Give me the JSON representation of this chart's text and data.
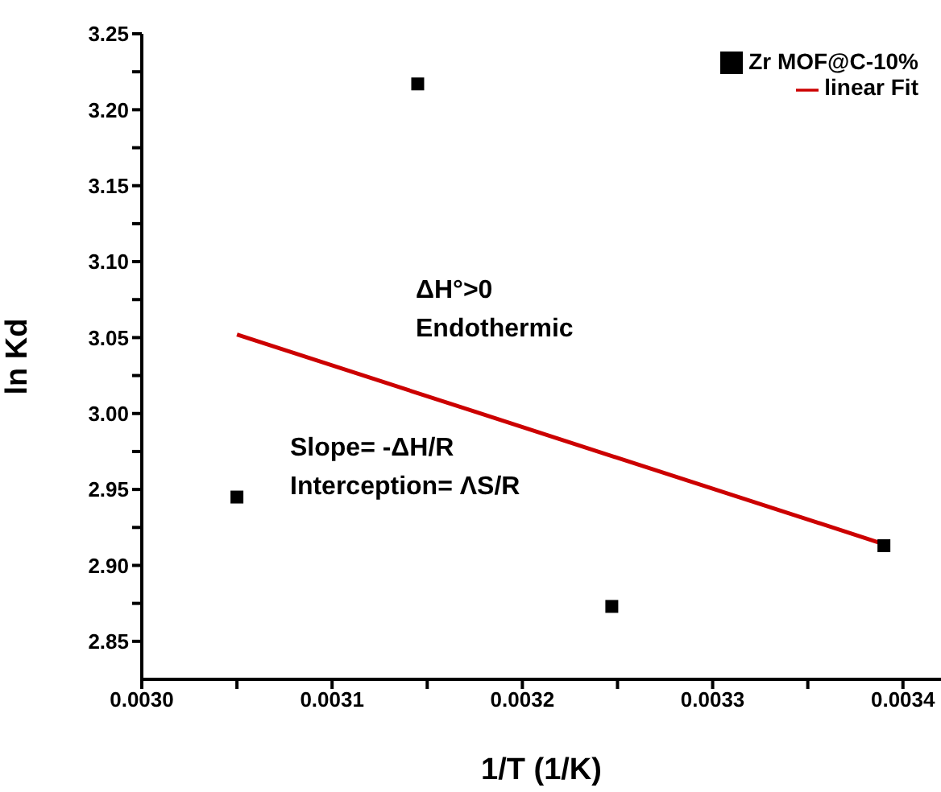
{
  "chart_data": {
    "type": "scatter",
    "xlabel": "1/T (1/K)",
    "ylabel": "ln Kd",
    "annotations": [
      "ΔH°>0",
      "Endothermic",
      "Slope= -ΔH/R",
      "Interception= ΛS/R"
    ],
    "series": [
      {
        "name": "Zr MOF@C-10%",
        "type": "scatter",
        "color": "#000000",
        "marker": "square",
        "x": [
          0.00305,
          0.003145,
          0.003247,
          0.00339
        ],
        "values": [
          2.945,
          3.217,
          2.873,
          2.913
        ]
      },
      {
        "name": "linear Fit",
        "type": "line",
        "color": "#cc0000",
        "marker": "none",
        "x": [
          0.00305,
          0.00339
        ],
        "values": [
          3.052,
          2.914
        ]
      }
    ],
    "xlim": [
      0.003,
      0.00342
    ],
    "xticks": [
      {
        "value": 0.003,
        "label": "0.0030"
      },
      {
        "value": 0.00305,
        "label": null
      },
      0.0031,
      {
        "value": 0.00315,
        "label": null
      },
      0.0032,
      {
        "value": 0.00325,
        "label": null
      },
      0.0033,
      {
        "value": 0.00335,
        "label": null
      },
      0.0034
    ],
    "ylim": [
      2.825,
      3.25
    ],
    "yticks": [
      2.85,
      {
        "value": 2.875,
        "label": null
      },
      {
        "value": 2.9,
        "label": "2.90"
      },
      {
        "value": 2.925,
        "label": null
      },
      2.95,
      {
        "value": 2.975,
        "label": null
      },
      {
        "value": 3,
        "label": "3.00"
      },
      {
        "value": 3.025,
        "label": null
      },
      3.05,
      {
        "value": 3.075,
        "label": null
      },
      {
        "value": 3.1,
        "label": "3.10"
      },
      {
        "value": 3.125,
        "label": null
      },
      3.15,
      {
        "value": 3.175,
        "label": null
      },
      {
        "value": 3.2,
        "label": "3.20"
      },
      {
        "value": 3.225,
        "label": null
      },
      3.25
    ],
    "grid": false,
    "legend": "top right"
  }
}
